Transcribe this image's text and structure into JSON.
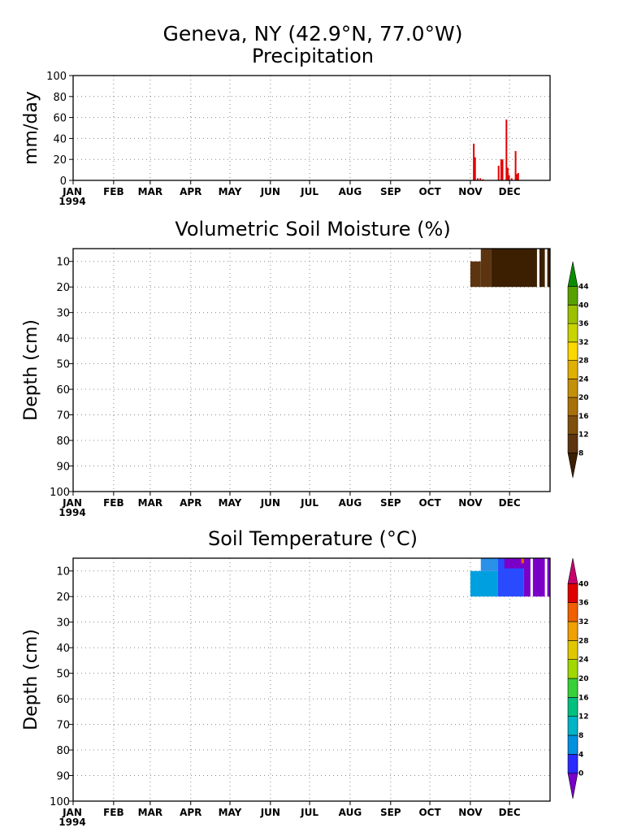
{
  "chart_data": [
    {
      "type": "bar",
      "title": "Geneva, NY  (42.9°N, 77.0°W)",
      "subtitle": "Precipitation",
      "ylabel": "mm/day",
      "ylim": [
        0,
        100
      ],
      "yticks": [
        "0",
        "20",
        "40",
        "60",
        "80",
        "100"
      ],
      "x_tick_labels": [
        "JAN",
        "FEB",
        "MAR",
        "APR",
        "MAY",
        "JUN",
        "JUL",
        "AUG",
        "SEP",
        "OCT",
        "NOV",
        "DEC"
      ],
      "year_label": "1994",
      "bar_color": "#e60000",
      "points": [
        {
          "day": 306,
          "value": 35
        },
        {
          "day": 307,
          "value": 22
        },
        {
          "day": 309,
          "value": 2
        },
        {
          "day": 311,
          "value": 2
        },
        {
          "day": 313,
          "value": 1
        },
        {
          "day": 325,
          "value": 14
        },
        {
          "day": 327,
          "value": 20
        },
        {
          "day": 328,
          "value": 20
        },
        {
          "day": 331,
          "value": 58
        },
        {
          "day": 332,
          "value": 12
        },
        {
          "day": 333,
          "value": 5
        },
        {
          "day": 335,
          "value": 2
        },
        {
          "day": 338,
          "value": 28
        },
        {
          "day": 339,
          "value": 6
        },
        {
          "day": 340,
          "value": 7
        }
      ]
    },
    {
      "type": "heatmap",
      "title": "Volumetric Soil Moisture (%)",
      "ylabel": "Depth (cm)",
      "ylim": [
        100,
        5
      ],
      "yticks": [
        "10",
        "20",
        "30",
        "40",
        "50",
        "60",
        "70",
        "80",
        "90",
        "100"
      ],
      "x_tick_labels": [
        "JAN",
        "FEB",
        "MAR",
        "APR",
        "MAY",
        "JUN",
        "JUL",
        "AUG",
        "SEP",
        "OCT",
        "NOV",
        "DEC"
      ],
      "year_label": "1994",
      "colorbar": {
        "labels": [
          "8",
          "12",
          "16",
          "20",
          "24",
          "28",
          "32",
          "36",
          "40",
          "44"
        ],
        "colors": [
          "#3b1f00",
          "#5c3410",
          "#7f4f0d",
          "#a8700a",
          "#c4900a",
          "#e0b000",
          "#fbd800",
          "#c8d400",
          "#9cc000",
          "#58a000",
          "#0b8c00"
        ]
      },
      "segments": [
        {
          "start": 304,
          "end": 312,
          "dmin": 10,
          "dmax": 20,
          "color": "#5c3410"
        },
        {
          "start": 312,
          "end": 320,
          "dmin": 5,
          "dmax": 20,
          "color": "#5c3410"
        },
        {
          "start": 320,
          "end": 360,
          "dmin": 5,
          "dmax": 20,
          "color": "#3b1f00"
        },
        {
          "start": 360,
          "end": 365,
          "dmin": 5,
          "dmax": 20,
          "color": "#3b1f00"
        }
      ],
      "gaps": [
        {
          "day": 355
        },
        {
          "day": 361
        }
      ]
    },
    {
      "type": "heatmap",
      "title": "Soil Temperature (°C)",
      "ylabel": "Depth (cm)",
      "ylim": [
        100,
        5
      ],
      "yticks": [
        "10",
        "20",
        "30",
        "40",
        "50",
        "60",
        "70",
        "80",
        "90",
        "100"
      ],
      "x_tick_labels": [
        "JAN",
        "FEB",
        "MAR",
        "APR",
        "MAY",
        "JUN",
        "JUL",
        "AUG",
        "SEP",
        "OCT",
        "NOV",
        "DEC"
      ],
      "year_label": "1994",
      "colorbar": {
        "labels": [
          "0",
          "4",
          "8",
          "12",
          "16",
          "20",
          "24",
          "28",
          "32",
          "36",
          "40"
        ],
        "colors": [
          "#7a00c8",
          "#2a2aff",
          "#0090e0",
          "#00b4c8",
          "#00c080",
          "#38d038",
          "#a0d800",
          "#e0c800",
          "#f0a000",
          "#f06000",
          "#e00000",
          "#c8006e"
        ]
      },
      "segments": [
        {
          "start": 304,
          "end": 325,
          "dmin": 10,
          "dmax": 20,
          "color": "#00a0e0"
        },
        {
          "start": 312,
          "end": 325,
          "dmin": 5,
          "dmax": 10,
          "color": "#2a90e8"
        },
        {
          "start": 325,
          "end": 345,
          "dmin": 5,
          "dmax": 20,
          "color": "#2a4aff"
        },
        {
          "start": 330,
          "end": 346,
          "dmin": 5,
          "dmax": 9,
          "color": "#7a00c8"
        },
        {
          "start": 345,
          "end": 365,
          "dmin": 5,
          "dmax": 20,
          "color": "#7a00c8"
        },
        {
          "start": 343,
          "end": 345,
          "dmin": 5,
          "dmax": 7,
          "color": "#f06000"
        }
      ],
      "gaps": [
        {
          "day": 350
        },
        {
          "day": 361
        }
      ]
    }
  ]
}
